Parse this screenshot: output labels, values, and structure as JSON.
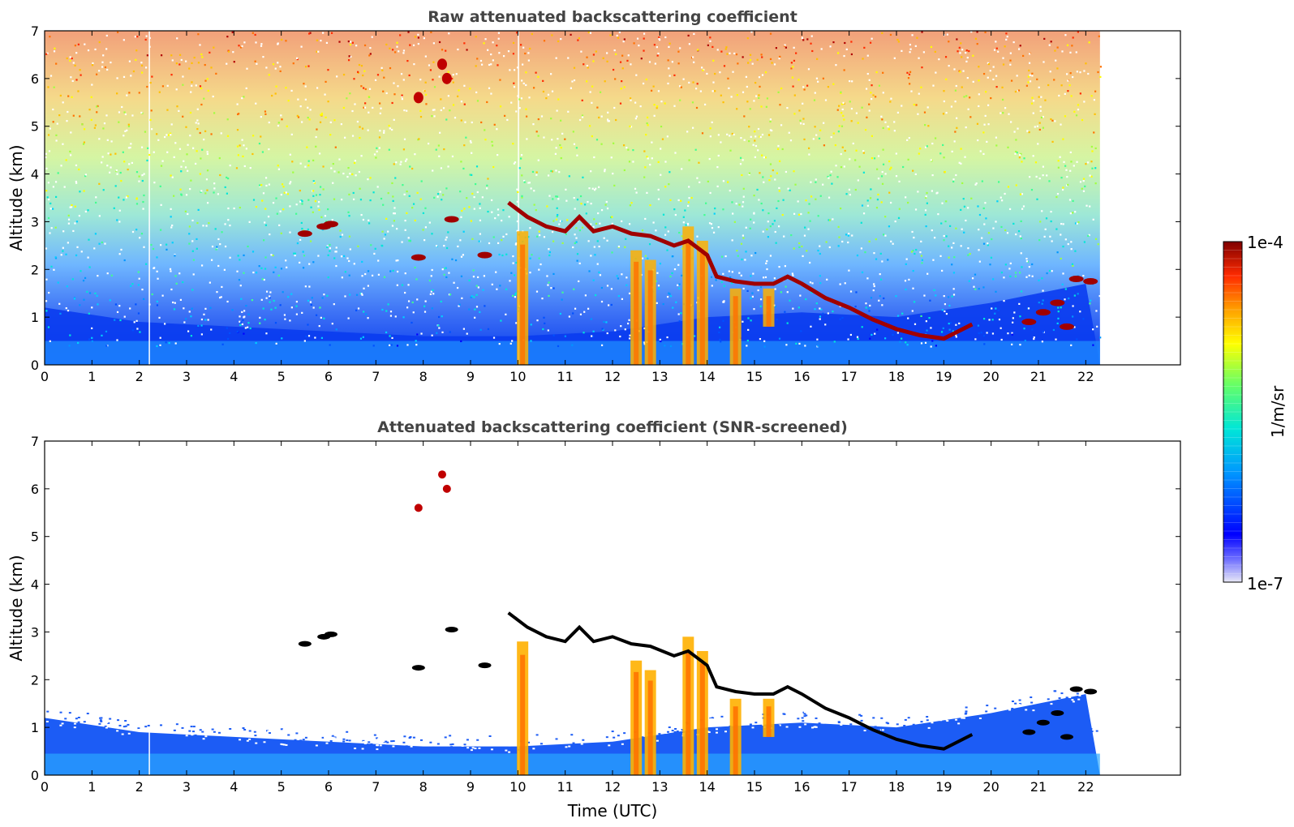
{
  "chart_data": [
    {
      "type": "heatmap",
      "title": "Raw attenuated backscattering coefficient",
      "ylabel": "Altitude (km)",
      "xlabel": "",
      "xlim": [
        0,
        24
      ],
      "ylim": [
        0,
        7
      ],
      "x_ticks": [
        "0",
        "1",
        "2",
        "3",
        "4",
        "5",
        "6",
        "7",
        "8",
        "9",
        "10",
        "11",
        "12",
        "13",
        "14",
        "15",
        "16",
        "17",
        "18",
        "19",
        "20",
        "21",
        "22"
      ],
      "y_ticks": [
        "0",
        "1",
        "2",
        "3",
        "4",
        "5",
        "6",
        "7"
      ],
      "data_end_time": 22.3,
      "screened": false,
      "cloud_layer": [
        [
          9.8,
          3.4
        ],
        [
          10.2,
          3.1
        ],
        [
          10.6,
          2.9
        ],
        [
          11.0,
          2.8
        ],
        [
          11.3,
          3.1
        ],
        [
          11.6,
          2.8
        ],
        [
          12.0,
          2.9
        ],
        [
          12.4,
          2.75
        ],
        [
          12.8,
          2.7
        ],
        [
          13.3,
          2.5
        ],
        [
          13.6,
          2.6
        ],
        [
          14.0,
          2.3
        ],
        [
          14.2,
          1.85
        ],
        [
          14.6,
          1.75
        ],
        [
          15.0,
          1.7
        ],
        [
          15.4,
          1.7
        ],
        [
          15.7,
          1.85
        ],
        [
          16.0,
          1.7
        ],
        [
          16.5,
          1.4
        ],
        [
          17.0,
          1.2
        ],
        [
          17.5,
          0.95
        ],
        [
          18.0,
          0.75
        ],
        [
          18.5,
          0.62
        ],
        [
          19.0,
          0.55
        ],
        [
          19.3,
          0.7
        ],
        [
          19.6,
          0.85
        ]
      ],
      "cloud_fragments": [
        [
          5.5,
          2.75
        ],
        [
          5.9,
          2.9
        ],
        [
          6.05,
          2.95
        ],
        [
          7.9,
          2.25
        ],
        [
          8.6,
          3.05
        ],
        [
          9.3,
          2.3
        ],
        [
          20.8,
          0.9
        ],
        [
          21.1,
          1.1
        ],
        [
          21.4,
          1.3
        ],
        [
          21.6,
          0.8
        ],
        [
          21.8,
          1.8
        ],
        [
          22.1,
          1.75
        ]
      ],
      "aerosol_plumes": [
        [
          10.1,
          0.0,
          2.8
        ],
        [
          12.5,
          0.0,
          2.4
        ],
        [
          12.8,
          0.0,
          2.2
        ],
        [
          13.6,
          0.0,
          2.9
        ],
        [
          13.9,
          0.0,
          2.6
        ],
        [
          14.6,
          0.0,
          1.6
        ],
        [
          15.3,
          0.8,
          1.6
        ]
      ],
      "high_features": [
        [
          7.9,
          5.6
        ],
        [
          8.5,
          6.0
        ],
        [
          8.4,
          6.3
        ]
      ],
      "boundary_layer_top": [
        [
          0,
          1.2
        ],
        [
          2,
          0.9
        ],
        [
          4,
          0.8
        ],
        [
          6,
          0.7
        ],
        [
          8,
          0.6
        ],
        [
          10,
          0.6
        ],
        [
          12,
          0.7
        ],
        [
          14,
          1.0
        ],
        [
          16,
          1.1
        ],
        [
          18,
          1.0
        ],
        [
          20,
          1.3
        ],
        [
          22,
          1.7
        ]
      ]
    },
    {
      "type": "heatmap",
      "title": "Attenuated backscattering coefficient (SNR-screened)",
      "ylabel": "Altitude (km)",
      "xlabel": "Time (UTC)",
      "xlim": [
        0,
        24
      ],
      "ylim": [
        0,
        7
      ],
      "x_ticks": [
        "0",
        "1",
        "2",
        "3",
        "4",
        "5",
        "6",
        "7",
        "8",
        "9",
        "10",
        "11",
        "12",
        "13",
        "14",
        "15",
        "16",
        "17",
        "18",
        "19",
        "20",
        "21",
        "22"
      ],
      "y_ticks": [
        "0",
        "1",
        "2",
        "3",
        "4",
        "5",
        "6",
        "7"
      ],
      "data_end_time": 22.3,
      "screened": true
    }
  ],
  "colorbar": {
    "label": "1/m/sr",
    "min_label": "1e-7",
    "max_label": "1e-4",
    "colormap": "jet",
    "colors": [
      "#e8e8f6",
      "#0000ff",
      "#0096ff",
      "#00e6d8",
      "#66ff66",
      "#ffff00",
      "#ffa000",
      "#ff2a00",
      "#7f0000"
    ]
  }
}
